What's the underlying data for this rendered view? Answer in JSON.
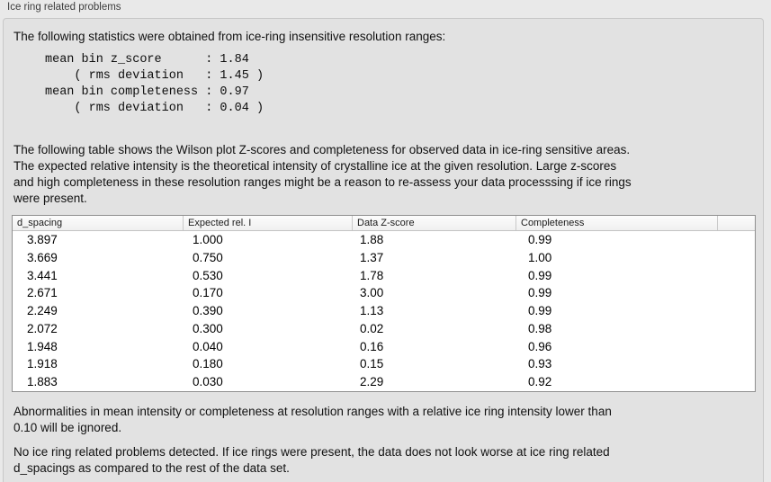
{
  "panel": {
    "title": "Ice ring related problems"
  },
  "intro": "The following statistics were obtained from ice-ring insensitive resolution ranges:",
  "stats_block": [
    "mean bin z_score      : 1.84",
    "    ( rms deviation   : 1.45 )",
    "mean bin completeness : 0.97",
    "    ( rms deviation   : 0.04 )"
  ],
  "table_description": [
    "The following table shows the Wilson plot Z-scores and completeness for observed data in ice-ring sensitive areas.",
    "The expected relative intensity is the theoretical intensity of crystalline ice at the given resolution. Large z-scores",
    "and high completeness in these resolution ranges might be a reason to re-assess your data processsing if ice rings",
    "were present."
  ],
  "table": {
    "columns": [
      "d_spacing",
      "Expected rel. I",
      "Data Z-score",
      "Completeness",
      ""
    ],
    "rows": [
      [
        "3.897",
        "1.000",
        "1.88",
        "0.99"
      ],
      [
        "3.669",
        "0.750",
        "1.37",
        "1.00"
      ],
      [
        "3.441",
        "0.530",
        "1.78",
        "0.99"
      ],
      [
        "2.671",
        "0.170",
        "3.00",
        "0.99"
      ],
      [
        "2.249",
        "0.390",
        "1.13",
        "0.99"
      ],
      [
        "2.072",
        "0.300",
        "0.02",
        "0.98"
      ],
      [
        "1.948",
        "0.040",
        "0.16",
        "0.96"
      ],
      [
        "1.918",
        "0.180",
        "0.15",
        "0.93"
      ],
      [
        "1.883",
        "0.030",
        "2.29",
        "0.92"
      ]
    ]
  },
  "notes": {
    "ignore_note": [
      "Abnormalities in mean intensity or completeness at resolution ranges with a relative ice ring intensity lower than",
      "0.10 will be ignored."
    ],
    "conclusion": [
      "No ice ring related problems detected. If ice rings were present, the data does not look worse at ice ring related",
      "d_spacings as compared to the rest of the data set."
    ]
  }
}
